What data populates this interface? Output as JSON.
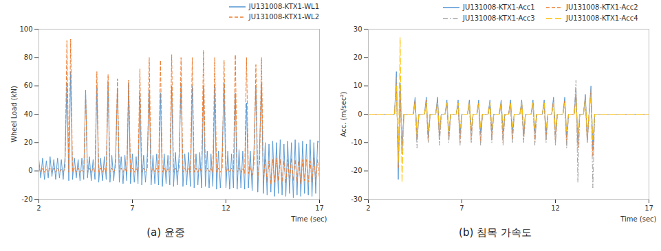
{
  "chart_data": [
    {
      "type": "line",
      "title": "(a) 윤중",
      "xlabel": "Time (sec)",
      "ylabel": "Wheel Load (kN)",
      "xlim": [
        2,
        17
      ],
      "xticks": [
        2,
        7,
        12,
        17
      ],
      "ylim": [
        -20,
        100
      ],
      "yticks": [
        -20,
        0,
        20,
        40,
        60,
        80,
        100
      ],
      "legend": "top-right",
      "x": [
        2,
        2.1,
        2.2,
        2.3,
        2.4,
        2.5,
        2.6,
        2.7,
        2.8,
        2.9,
        3,
        3.1,
        3.2,
        3.3,
        3.4,
        3.5,
        3.6,
        3.7,
        3.8,
        3.9,
        4,
        4.1,
        4.2,
        4.3,
        4.4,
        4.5,
        4.6,
        4.7,
        4.8,
        4.9,
        5,
        5.1,
        5.2,
        5.3,
        5.4,
        5.5,
        5.6,
        5.7,
        5.8,
        5.9,
        6,
        6.1,
        6.2,
        6.3,
        6.4,
        6.5,
        6.6,
        6.7,
        6.8,
        6.9,
        7,
        7.1,
        7.2,
        7.3,
        7.4,
        7.5,
        7.6,
        7.7,
        7.8,
        7.9,
        8,
        8.1,
        8.2,
        8.3,
        8.4,
        8.5,
        8.6,
        8.7,
        8.8,
        8.9,
        9,
        9.1,
        9.2,
        9.3,
        9.4,
        9.5,
        9.6,
        9.7,
        9.8,
        9.9,
        10,
        10.1,
        10.2,
        10.3,
        10.4,
        10.5,
        10.6,
        10.7,
        10.8,
        10.9,
        11,
        11.1,
        11.2,
        11.3,
        11.4,
        11.5,
        11.6,
        11.7,
        11.8,
        11.9,
        12,
        12.1,
        12.2,
        12.3,
        12.4,
        12.5,
        12.6,
        12.7,
        12.8,
        12.9,
        13,
        13.1,
        13.2,
        13.3,
        13.4,
        13.5,
        13.6,
        13.7,
        13.8,
        13.9,
        14,
        14.1,
        14.2,
        14.3,
        14.4,
        14.5,
        14.6,
        14.7,
        14.8,
        14.9,
        15,
        15.1,
        15.2,
        15.3,
        15.4,
        15.5,
        15.6,
        15.7,
        15.8,
        15.9,
        16,
        16.1,
        16.2,
        16.3,
        16.4,
        16.5,
        16.6,
        16.7,
        16.8,
        16.9,
        17
      ],
      "series": [
        {
          "name": "JU131008-KTX1-WL1",
          "color": "#5b9bd5",
          "line_style": "solid",
          "values": [
            8,
            -5,
            9,
            -6,
            7,
            -5,
            10,
            -4,
            8,
            -6,
            9,
            -5,
            8,
            -6,
            10,
            62,
            -7,
            70,
            -6,
            9,
            -5,
            8,
            -7,
            9,
            -6,
            57,
            -5,
            10,
            -7,
            8,
            -6,
            60,
            -8,
            9,
            -7,
            10,
            -6,
            63,
            -8,
            11,
            -7,
            9,
            58,
            -8,
            10,
            -9,
            11,
            -7,
            62,
            -9,
            12,
            -8,
            10,
            -9,
            55,
            -10,
            11,
            -8,
            12,
            57,
            -10,
            11,
            -9,
            12,
            -10,
            55,
            -11,
            12,
            -9,
            11,
            -10,
            60,
            -11,
            13,
            -10,
            12,
            62,
            -11,
            12,
            -10,
            13,
            -11,
            60,
            -12,
            12,
            -10,
            13,
            -12,
            60,
            -11,
            14,
            -12,
            12,
            -11,
            60,
            -13,
            14,
            -12,
            13,
            62,
            -12,
            14,
            -13,
            12,
            -12,
            55,
            -13,
            15,
            -12,
            14,
            -13,
            48,
            -12,
            14,
            -14,
            16,
            60,
            -15,
            18,
            62,
            -16,
            20,
            -17,
            19,
            -15,
            21,
            -18,
            20,
            -16,
            22,
            -17,
            19,
            -18,
            21,
            -16,
            20,
            -19,
            22,
            -17,
            20,
            -18,
            21,
            -16,
            19,
            -17,
            22,
            -18,
            20,
            -16,
            21,
            20
          ]
        },
        {
          "name": "JU131008-KTX1-WL2",
          "color": "#ed7d31",
          "line_style": "dashed",
          "values": [
            2,
            -1,
            2,
            -1,
            1,
            -1,
            2,
            -1,
            2,
            -1,
            2,
            -1,
            1,
            -1,
            2,
            92,
            -1,
            93,
            -1,
            2,
            -1,
            2,
            -1,
            1,
            -1,
            55,
            -1,
            2,
            -1,
            2,
            -1,
            70,
            -1,
            2,
            -1,
            2,
            -1,
            68,
            -1,
            2,
            -1,
            2,
            65,
            -1,
            2,
            -1,
            2,
            -1,
            64,
            -1,
            2,
            -1,
            2,
            -1,
            72,
            -1,
            2,
            -1,
            2,
            80,
            -1,
            2,
            -1,
            2,
            -1,
            78,
            -1,
            2,
            -1,
            2,
            -1,
            82,
            -1,
            2,
            -1,
            2,
            80,
            -1,
            2,
            -1,
            2,
            -1,
            80,
            -1,
            2,
            -1,
            2,
            -1,
            85,
            -1,
            2,
            -1,
            2,
            -1,
            80,
            -1,
            2,
            -1,
            2,
            78,
            -1,
            2,
            -1,
            2,
            -1,
            82,
            -1,
            2,
            -1,
            2,
            -2,
            80,
            -2,
            3,
            -3,
            5,
            75,
            -6,
            7,
            80,
            -8,
            8,
            -8,
            7,
            -9,
            8,
            -8,
            9,
            -7,
            8,
            -8,
            7,
            -9,
            8,
            -8,
            9,
            -7,
            8,
            -8,
            7,
            -9,
            8,
            -7,
            8,
            -8,
            7,
            -8,
            9,
            -7,
            8,
            -6
          ]
        }
      ]
    },
    {
      "type": "line",
      "title": "(b) 침목 가속도",
      "xlabel": "Time (sec)",
      "ylabel": "Acc. (m/sec²)",
      "xlim": [
        2,
        17
      ],
      "xticks": [
        2,
        7,
        12,
        17
      ],
      "ylim": [
        -30,
        30
      ],
      "yticks": [
        -30,
        -20,
        -10,
        0,
        10,
        20,
        30
      ],
      "legend": "top-right",
      "x": [
        2,
        2.1,
        2.2,
        2.3,
        2.4,
        2.5,
        2.6,
        2.7,
        2.8,
        2.9,
        3,
        3.1,
        3.2,
        3.3,
        3.4,
        3.5,
        3.6,
        3.7,
        3.8,
        3.9,
        4,
        4.1,
        4.2,
        4.3,
        4.4,
        4.5,
        4.6,
        4.7,
        4.8,
        4.9,
        5,
        5.1,
        5.2,
        5.3,
        5.4,
        5.5,
        5.6,
        5.7,
        5.8,
        5.9,
        6,
        6.1,
        6.2,
        6.3,
        6.4,
        6.5,
        6.6,
        6.7,
        6.8,
        6.9,
        7,
        7.1,
        7.2,
        7.3,
        7.4,
        7.5,
        7.6,
        7.7,
        7.8,
        7.9,
        8,
        8.1,
        8.2,
        8.3,
        8.4,
        8.5,
        8.6,
        8.7,
        8.8,
        8.9,
        9,
        9.1,
        9.2,
        9.3,
        9.4,
        9.5,
        9.6,
        9.7,
        9.8,
        9.9,
        10,
        10.1,
        10.2,
        10.3,
        10.4,
        10.5,
        10.6,
        10.7,
        10.8,
        10.9,
        11,
        11.1,
        11.2,
        11.3,
        11.4,
        11.5,
        11.6,
        11.7,
        11.8,
        11.9,
        12,
        12.1,
        12.2,
        12.3,
        12.4,
        12.5,
        12.6,
        12.7,
        12.8,
        12.9,
        13,
        13.1,
        13.2,
        13.3,
        13.4,
        13.5,
        13.6,
        13.7,
        13.8,
        13.9,
        14,
        14.1,
        14.2,
        14.3,
        14.4,
        14.5,
        14.6,
        14.7,
        14.8,
        14.9,
        15,
        15.1,
        15.2,
        15.3,
        15.4,
        15.5,
        15.6,
        15.7,
        15.8,
        15.9,
        16,
        16.1,
        16.2,
        16.3,
        16.4,
        16.5,
        16.6,
        16.7,
        16.8,
        16.9,
        17
      ],
      "series": [
        {
          "name": "JU131008-KTX1-Acc1",
          "color": "#5b9bd5",
          "line_style": "solid",
          "values": [
            0,
            0,
            0,
            0,
            0,
            0,
            0,
            0,
            0,
            0,
            0,
            0,
            0,
            0,
            0,
            15,
            -23,
            11,
            -12,
            0,
            0,
            0,
            0,
            0,
            0,
            6,
            -8,
            0,
            0,
            0,
            0,
            6,
            -8,
            0,
            0,
            0,
            0,
            6,
            -7,
            0,
            0,
            0,
            5,
            -7,
            0,
            0,
            0,
            0,
            5,
            -7,
            0,
            0,
            0,
            0,
            5,
            -6,
            0,
            0,
            0,
            5,
            -7,
            0,
            0,
            0,
            0,
            5,
            -6,
            0,
            0,
            0,
            0,
            5,
            -6,
            0,
            0,
            0,
            5,
            -6,
            0,
            0,
            0,
            0,
            5,
            -7,
            0,
            0,
            0,
            0,
            5,
            -6,
            0,
            0,
            0,
            0,
            5,
            -7,
            0,
            0,
            0,
            6,
            -7,
            0,
            0,
            0,
            0,
            6,
            -8,
            0,
            0,
            0,
            0,
            8,
            -10,
            0,
            0,
            0,
            7,
            -9,
            0,
            10,
            -12,
            0,
            0,
            0,
            0,
            0,
            0,
            0,
            0,
            0,
            0,
            0,
            0,
            0,
            0,
            0,
            0,
            0,
            0,
            0,
            0,
            0,
            0,
            0,
            0,
            0,
            0,
            0,
            0,
            0,
            0
          ]
        },
        {
          "name": "JU131008-KTX1-Acc2",
          "color": "#ed7d31",
          "line_style": "dashed",
          "values": [
            0,
            0,
            0,
            0,
            0,
            0,
            0,
            0,
            0,
            0,
            0,
            0,
            0,
            0,
            0,
            11,
            -19,
            9,
            -14,
            0,
            0,
            0,
            0,
            0,
            0,
            5,
            -9,
            0,
            0,
            0,
            0,
            5,
            -10,
            0,
            0,
            0,
            0,
            5,
            -9,
            0,
            0,
            0,
            4,
            -9,
            0,
            0,
            0,
            0,
            4,
            -10,
            0,
            0,
            0,
            0,
            4,
            -9,
            0,
            0,
            0,
            4,
            -10,
            0,
            0,
            0,
            0,
            4,
            -9,
            0,
            0,
            0,
            0,
            4,
            -10,
            0,
            0,
            0,
            4,
            -9,
            0,
            0,
            0,
            0,
            4,
            -9,
            0,
            0,
            0,
            0,
            4,
            -10,
            0,
            0,
            0,
            0,
            4,
            -9,
            0,
            0,
            0,
            5,
            -10,
            0,
            0,
            0,
            0,
            5,
            -10,
            0,
            0,
            0,
            0,
            7,
            -12,
            0,
            0,
            0,
            6,
            -10,
            0,
            8,
            -15,
            0,
            0,
            0,
            0,
            0,
            0,
            0,
            0,
            0,
            0,
            0,
            0,
            0,
            0,
            0,
            0,
            0,
            0,
            0,
            0,
            0,
            0,
            0,
            0,
            0,
            0,
            0,
            0,
            0,
            0
          ]
        },
        {
          "name": "JU131008-KTX1-Acc3",
          "color": "#a5a5a5",
          "line_style": "dashdot",
          "values": [
            0,
            0,
            0,
            0,
            0,
            0,
            0,
            0,
            0,
            0,
            0,
            0,
            0,
            0,
            0,
            13,
            -18,
            10,
            -13,
            0,
            0,
            0,
            0,
            0,
            0,
            4,
            -12,
            0,
            0,
            0,
            0,
            4,
            -10,
            0,
            0,
            0,
            0,
            4,
            -11,
            0,
            0,
            0,
            4,
            -10,
            0,
            0,
            0,
            0,
            3,
            -11,
            0,
            0,
            0,
            0,
            3,
            -10,
            0,
            0,
            0,
            3,
            -11,
            0,
            0,
            0,
            0,
            3,
            -10,
            0,
            0,
            0,
            0,
            3,
            -11,
            0,
            0,
            0,
            3,
            -10,
            0,
            0,
            0,
            0,
            3,
            -10,
            0,
            0,
            0,
            0,
            3,
            -11,
            0,
            0,
            0,
            0,
            3,
            -10,
            0,
            0,
            0,
            4,
            -11,
            0,
            0,
            0,
            0,
            4,
            -12,
            0,
            0,
            0,
            0,
            12,
            -24,
            0,
            0,
            0,
            6,
            -10,
            0,
            9,
            -26,
            0,
            0,
            0,
            0,
            0,
            0,
            0,
            0,
            0,
            0,
            0,
            0,
            0,
            0,
            0,
            0,
            0,
            0,
            0,
            0,
            0,
            0,
            0,
            0,
            0,
            0,
            0,
            0,
            0,
            0
          ]
        },
        {
          "name": "JU131008-KTX1-Acc4",
          "color": "#ffc000",
          "line_style": "longdash",
          "values": [
            0,
            0,
            0,
            0,
            0,
            0,
            0,
            0,
            0,
            0,
            0,
            0,
            0,
            0,
            0,
            10,
            -17,
            27,
            -24,
            0,
            0,
            0,
            0,
            0,
            0,
            4,
            -7,
            0,
            0,
            0,
            0,
            4,
            -6,
            0,
            0,
            0,
            0,
            4,
            -6,
            0,
            0,
            0,
            4,
            -6,
            0,
            0,
            0,
            0,
            4,
            -5,
            0,
            0,
            0,
            0,
            4,
            -5,
            0,
            0,
            0,
            4,
            -5,
            0,
            0,
            0,
            0,
            4,
            -5,
            0,
            0,
            0,
            0,
            4,
            -5,
            0,
            0,
            0,
            4,
            -5,
            0,
            0,
            0,
            0,
            4,
            -5,
            0,
            0,
            0,
            0,
            4,
            -5,
            0,
            0,
            0,
            0,
            4,
            -5,
            0,
            0,
            0,
            4,
            -6,
            0,
            0,
            0,
            0,
            4,
            -6,
            0,
            0,
            0,
            0,
            5,
            -7,
            0,
            0,
            0,
            5,
            -7,
            0,
            6,
            -9,
            0,
            0,
            0,
            0,
            0,
            0,
            0,
            0,
            0,
            0,
            0,
            0,
            0,
            0,
            0,
            0,
            0,
            0,
            0,
            0,
            0,
            0,
            0,
            0,
            0,
            0,
            0,
            0,
            0,
            0
          ]
        }
      ]
    }
  ]
}
